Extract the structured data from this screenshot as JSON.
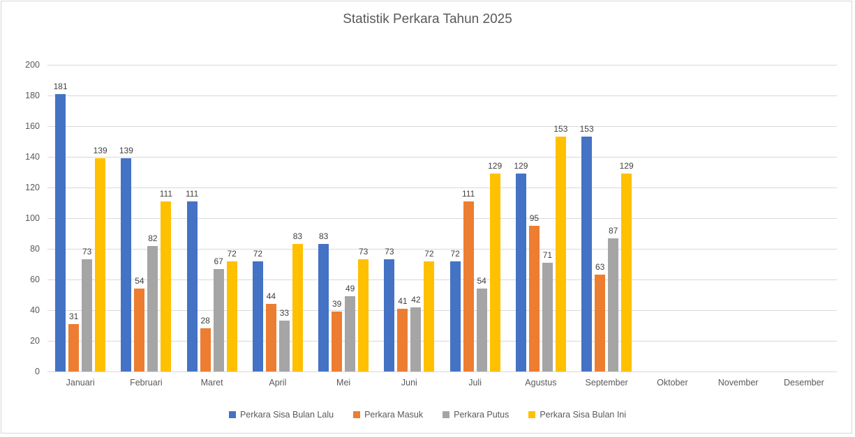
{
  "chart_data": {
    "type": "bar",
    "title": "Statistik Perkara Tahun 2025",
    "categories": [
      "Januari",
      "Februari",
      "Maret",
      "April",
      "Mei",
      "Juni",
      "Juli",
      "Agustus",
      "September",
      "Oktober",
      "November",
      "Desember"
    ],
    "series": [
      {
        "name": "Perkara Sisa Bulan Lalu",
        "color": "#4472C4",
        "values": [
          181,
          139,
          111,
          72,
          83,
          73,
          72,
          129,
          153,
          null,
          null,
          null
        ]
      },
      {
        "name": "Perkara Masuk",
        "color": "#ED7D31",
        "values": [
          31,
          54,
          28,
          44,
          39,
          41,
          111,
          95,
          63,
          null,
          null,
          null
        ]
      },
      {
        "name": "Perkara Putus",
        "color": "#A5A5A5",
        "values": [
          73,
          82,
          67,
          33,
          49,
          42,
          54,
          71,
          87,
          null,
          null,
          null
        ]
      },
      {
        "name": "Perkara Sisa Bulan Ini",
        "color": "#FFC000",
        "values": [
          139,
          111,
          72,
          83,
          73,
          72,
          129,
          153,
          129,
          null,
          null,
          null
        ]
      }
    ],
    "ylim": [
      0,
      200
    ],
    "yticks": [
      0,
      20,
      40,
      60,
      80,
      100,
      120,
      140,
      160,
      180,
      200
    ],
    "grid": true,
    "legend_position": "bottom",
    "data_labels": true
  }
}
